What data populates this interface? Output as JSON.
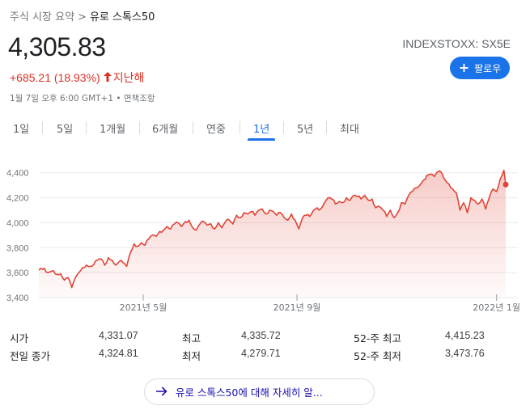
{
  "breadcrumb": {
    "root": "주식 시장 요약",
    "separator": ">",
    "current": "유로 스톡스50"
  },
  "quote": {
    "price": "4,305.83",
    "ticker": "INDEXSTOXX: SX5E",
    "change": "+685.21 (18.93%)",
    "period": "지난해",
    "timestamp": "1월 7일 오후 6:00 GMT+1 • 면책조항",
    "follow_label": "팔로우"
  },
  "tabs": [
    {
      "label": "1일"
    },
    {
      "label": "5일"
    },
    {
      "label": "1개월"
    },
    {
      "label": "6개월"
    },
    {
      "label": "연중"
    },
    {
      "label": "1년",
      "active": true
    },
    {
      "label": "5년"
    },
    {
      "label": "최대"
    }
  ],
  "colors": {
    "accent": "#1a73e8",
    "down_up_red": "#d93025",
    "line": "#e04436"
  },
  "chart_data": {
    "type": "area",
    "ylim": [
      3400,
      4450
    ],
    "yticks": [
      "4,400",
      "4,200",
      "4,000",
      "3,800",
      "3,600",
      "3,400"
    ],
    "yticks_values": [
      4400,
      4200,
      4000,
      3800,
      3600,
      3400
    ],
    "xtick_labels": [
      "2021년 5월",
      "2021년 9월",
      "2022년 1월"
    ],
    "xtick_index": [
      57,
      141,
      250
    ],
    "n_points": 256,
    "anchors": [
      [
        0,
        3620
      ],
      [
        3,
        3635
      ],
      [
        5,
        3600
      ],
      [
        8,
        3615
      ],
      [
        10,
        3585
      ],
      [
        12,
        3590
      ],
      [
        14,
        3540
      ],
      [
        16,
        3560
      ],
      [
        18,
        3480
      ],
      [
        20,
        3560
      ],
      [
        23,
        3620
      ],
      [
        26,
        3660
      ],
      [
        29,
        3650
      ],
      [
        32,
        3700
      ],
      [
        34,
        3710
      ],
      [
        36,
        3660
      ],
      [
        38,
        3720
      ],
      [
        40,
        3700
      ],
      [
        42,
        3660
      ],
      [
        44,
        3690
      ],
      [
        46,
        3680
      ],
      [
        48,
        3650
      ],
      [
        50,
        3760
      ],
      [
        52,
        3830
      ],
      [
        54,
        3810
      ],
      [
        56,
        3840
      ],
      [
        58,
        3820
      ],
      [
        60,
        3870
      ],
      [
        62,
        3900
      ],
      [
        64,
        3890
      ],
      [
        66,
        3930
      ],
      [
        68,
        3940
      ],
      [
        70,
        3970
      ],
      [
        72,
        3950
      ],
      [
        74,
        3990
      ],
      [
        76,
        4000
      ],
      [
        78,
        3970
      ],
      [
        80,
        4010
      ],
      [
        82,
        4020
      ],
      [
        84,
        3960
      ],
      [
        86,
        3940
      ],
      [
        88,
        3990
      ],
      [
        90,
        4010
      ],
      [
        92,
        3980
      ],
      [
        94,
        3990
      ],
      [
        96,
        3950
      ],
      [
        98,
        4000
      ],
      [
        100,
        3960
      ],
      [
        102,
        4010
      ],
      [
        104,
        4020
      ],
      [
        106,
        3990
      ],
      [
        108,
        4060
      ],
      [
        110,
        4040
      ],
      [
        112,
        4080
      ],
      [
        114,
        4070
      ],
      [
        116,
        4090
      ],
      [
        118,
        4060
      ],
      [
        120,
        4100
      ],
      [
        122,
        4110
      ],
      [
        124,
        4070
      ],
      [
        126,
        4100
      ],
      [
        128,
        4090
      ],
      [
        130,
        4060
      ],
      [
        132,
        4080
      ],
      [
        134,
        4040
      ],
      [
        136,
        4020
      ],
      [
        138,
        4070
      ],
      [
        140,
        4020
      ],
      [
        142,
        3950
      ],
      [
        144,
        4040
      ],
      [
        146,
        4060
      ],
      [
        148,
        4050
      ],
      [
        150,
        4100
      ],
      [
        152,
        4120
      ],
      [
        154,
        4110
      ],
      [
        156,
        4160
      ],
      [
        158,
        4200
      ],
      [
        160,
        4190
      ],
      [
        162,
        4150
      ],
      [
        164,
        4170
      ],
      [
        166,
        4160
      ],
      [
        168,
        4200
      ],
      [
        170,
        4180
      ],
      [
        172,
        4220
      ],
      [
        174,
        4210
      ],
      [
        176,
        4190
      ],
      [
        178,
        4220
      ],
      [
        180,
        4180
      ],
      [
        182,
        4190
      ],
      [
        184,
        4120
      ],
      [
        186,
        4130
      ],
      [
        188,
        4100
      ],
      [
        190,
        4050
      ],
      [
        192,
        4100
      ],
      [
        194,
        4040
      ],
      [
        196,
        4080
      ],
      [
        198,
        4160
      ],
      [
        200,
        4150
      ],
      [
        202,
        4220
      ],
      [
        204,
        4250
      ],
      [
        206,
        4280
      ],
      [
        208,
        4300
      ],
      [
        210,
        4340
      ],
      [
        212,
        4380
      ],
      [
        214,
        4390
      ],
      [
        216,
        4370
      ],
      [
        218,
        4410
      ],
      [
        220,
        4400
      ],
      [
        222,
        4340
      ],
      [
        224,
        4310
      ],
      [
        226,
        4270
      ],
      [
        228,
        4240
      ],
      [
        230,
        4100
      ],
      [
        232,
        4160
      ],
      [
        234,
        4080
      ],
      [
        236,
        4200
      ],
      [
        238,
        4180
      ],
      [
        240,
        4150
      ],
      [
        242,
        4190
      ],
      [
        244,
        4110
      ],
      [
        246,
        4200
      ],
      [
        248,
        4270
      ],
      [
        250,
        4250
      ],
      [
        252,
        4350
      ],
      [
        254,
        4420
      ],
      [
        255,
        4306
      ]
    ],
    "last_value": 4305.83
  },
  "stats": {
    "rows": [
      [
        {
          "label": "시가",
          "value": "4,331.07"
        },
        {
          "label": "최고",
          "value": "4,335.72"
        },
        {
          "label": "52-주 최고",
          "value": "4,415.23"
        }
      ],
      [
        {
          "label": "전일 종가",
          "value": "4,324.81"
        },
        {
          "label": "최저",
          "value": "4,279.71"
        },
        {
          "label": "52-주 최저",
          "value": "3,473.76"
        }
      ]
    ]
  },
  "more_link": {
    "label": "유로 스톡스50에 대해 자세히 알..."
  }
}
